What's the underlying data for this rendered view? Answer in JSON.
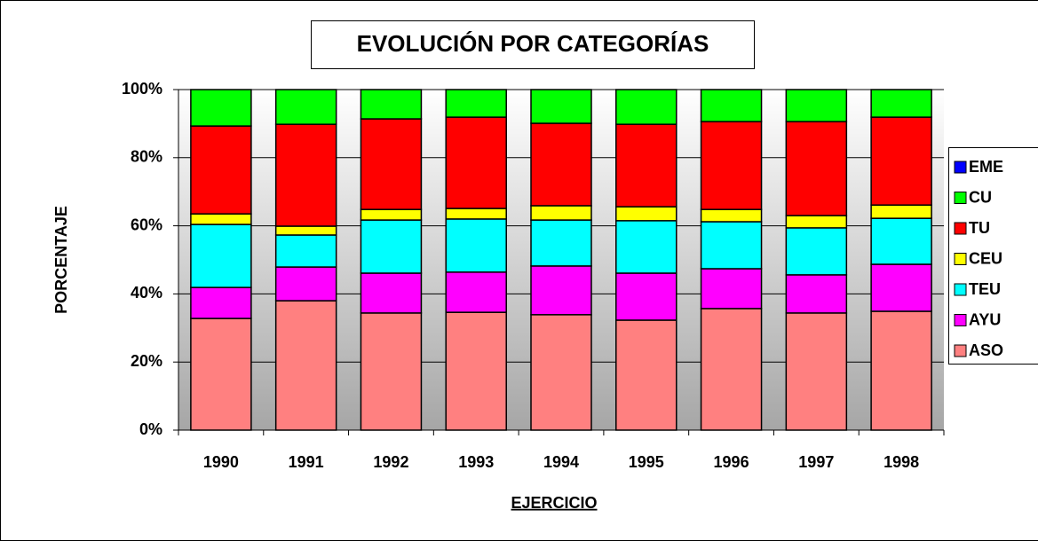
{
  "chart_data": {
    "type": "stacked_bar",
    "title": "EVOLUCIÓN POR CATEGORÍAS",
    "xlabel": "EJERCICIO",
    "ylabel": "PORCENTAJE",
    "categories": [
      "1990",
      "1991",
      "1992",
      "1993",
      "1994",
      "1995",
      "1996",
      "1997",
      "1998"
    ],
    "series": [
      {
        "name": "ASO",
        "color": "#ff8080",
        "values": [
          32.8,
          38.0,
          34.4,
          34.6,
          33.9,
          32.3,
          35.7,
          34.4,
          34.9
        ]
      },
      {
        "name": "AYU",
        "color": "#ff00ff",
        "values": [
          9.1,
          9.9,
          11.7,
          11.8,
          14.3,
          13.8,
          11.7,
          11.2,
          13.8
        ]
      },
      {
        "name": "TEU",
        "color": "#00ffff",
        "values": [
          18.5,
          9.4,
          15.6,
          15.6,
          13.5,
          15.4,
          13.8,
          13.8,
          13.5
        ]
      },
      {
        "name": "CEU",
        "color": "#ffff00",
        "values": [
          3.1,
          2.6,
          3.1,
          3.1,
          4.2,
          4.1,
          3.6,
          3.6,
          3.9
        ]
      },
      {
        "name": "TU",
        "color": "#ff0000",
        "values": [
          25.8,
          29.9,
          26.6,
          26.8,
          24.2,
          24.2,
          25.8,
          27.6,
          25.8
        ]
      },
      {
        "name": "CU",
        "color": "#00ff00",
        "values": [
          10.7,
          10.2,
          8.6,
          8.1,
          9.9,
          10.2,
          9.4,
          9.4,
          8.1
        ]
      },
      {
        "name": "EME",
        "color": "#0000ff",
        "values": [
          0,
          0,
          0,
          0,
          0,
          0,
          0,
          0,
          0
        ]
      }
    ],
    "ylim": [
      0,
      100
    ],
    "yticks": [
      {
        "value": 0,
        "label": "0%"
      },
      {
        "value": 20,
        "label": "20%"
      },
      {
        "value": 40,
        "label": "40%"
      },
      {
        "value": 60,
        "label": "60%"
      },
      {
        "value": 80,
        "label": "80%"
      },
      {
        "value": 100,
        "label": "100%"
      }
    ],
    "grid": true,
    "legend": "right"
  }
}
